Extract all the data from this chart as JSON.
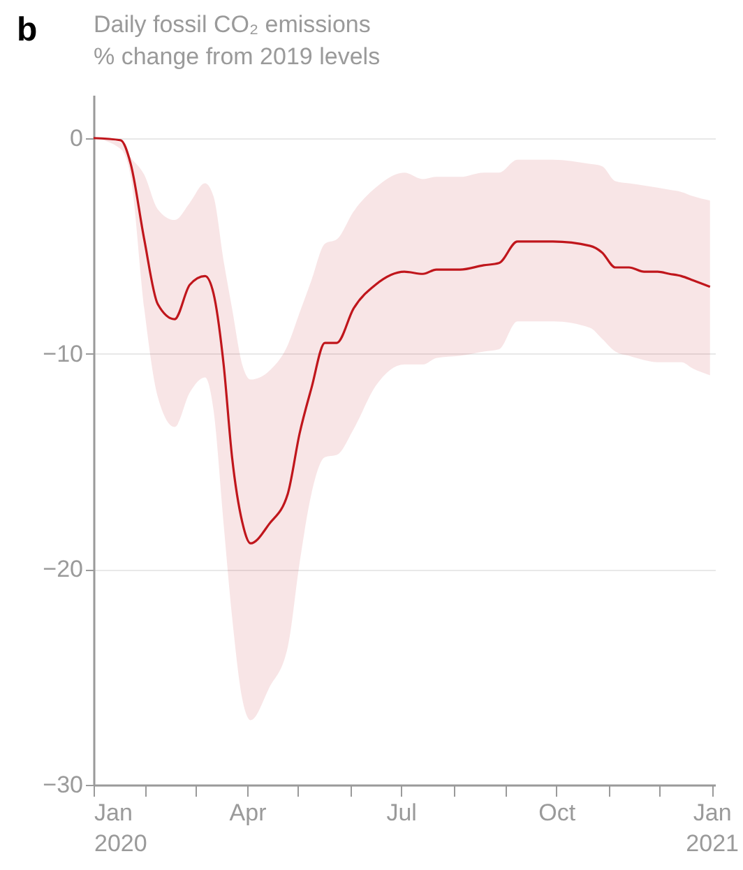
{
  "chart_data": {
    "type": "line",
    "title": "Daily fossil CO₂ emissions",
    "subtitle": "% change from 2019 levels",
    "annotations": [
      "b"
    ],
    "x": [
      "2020-01-01",
      "2020-01-17",
      "2020-01-23",
      "2020-01-31",
      "2020-02-08",
      "2020-02-18",
      "2020-02-27",
      "2020-03-07",
      "2020-03-12",
      "2020-03-18",
      "2020-03-23",
      "2020-03-29",
      "2020-04-03",
      "2020-04-14",
      "2020-04-25",
      "2020-05-02",
      "2020-05-09",
      "2020-05-17",
      "2020-05-24",
      "2020-06-03",
      "2020-06-16",
      "2020-07-03",
      "2020-07-14",
      "2020-07-22",
      "2020-08-05",
      "2020-08-19",
      "2020-08-28",
      "2020-09-08",
      "2020-09-29",
      "2020-10-21",
      "2020-10-28",
      "2020-11-05",
      "2020-11-13",
      "2020-11-22",
      "2020-11-30",
      "2020-12-07",
      "2020-12-14",
      "2020-12-21",
      "2020-12-31"
    ],
    "series": [
      {
        "color": "#c0161c",
        "line_style": "solid",
        "values": [
          0,
          -0.1,
          -1.2,
          -4.7,
          -7.7,
          -8.4,
          -6.8,
          -6.4,
          -7.2,
          -10.5,
          -14.8,
          -17.8,
          -18.8,
          -17.9,
          -16.5,
          -13.7,
          -11.6,
          -9.5,
          -9.5,
          -7.9,
          -6.8,
          -6.2,
          -6.3,
          -6.1,
          -6.1,
          -5.9,
          -5.8,
          -4.8,
          -4.8,
          -5.0,
          -5.3,
          -6.0,
          -6.0,
          -6.2,
          -6.2,
          -6.3,
          -6.4,
          -6.6,
          -6.9
        ],
        "upper": [
          0,
          -0.2,
          -0.9,
          -1.7,
          -3.3,
          -3.8,
          -3.0,
          -2.1,
          -2.7,
          -5.7,
          -7.9,
          -10.5,
          -11.2,
          -10.8,
          -9.6,
          -8.1,
          -6.6,
          -4.9,
          -4.7,
          -3.4,
          -2.3,
          -1.6,
          -1.9,
          -1.8,
          -1.8,
          -1.6,
          -1.6,
          -1.0,
          -1.0,
          -1.2,
          -1.3,
          -2.0,
          -2.1,
          -2.2,
          -2.3,
          -2.4,
          -2.5,
          -2.7,
          -2.9
        ],
        "lower": [
          0,
          -0.5,
          -1.8,
          -7.9,
          -12.0,
          -13.4,
          -11.8,
          -11.1,
          -12.6,
          -17.9,
          -22.2,
          -26.0,
          -27.0,
          -25.5,
          -23.6,
          -19.7,
          -16.5,
          -14.8,
          -14.7,
          -13.5,
          -11.5,
          -10.5,
          -10.5,
          -10.2,
          -10.1,
          -9.9,
          -9.8,
          -8.5,
          -8.5,
          -8.8,
          -9.3,
          -9.9,
          -10.1,
          -10.3,
          -10.4,
          -10.4,
          -10.4,
          -10.7,
          -11.0
        ]
      }
    ],
    "xlim": [
      "2020-01-01",
      "2021-01-03"
    ],
    "xticks": [
      {
        "value": "2020-01-01",
        "label": "Jan\n2020"
      },
      {
        "value": "2020-02-01",
        "label": null
      },
      {
        "value": "2020-03-01",
        "label": null
      },
      {
        "value": "2020-04-01",
        "label": "Apr"
      },
      {
        "value": "2020-05-01",
        "label": null
      },
      {
        "value": "2020-06-01",
        "label": null
      },
      {
        "value": "2020-07-01",
        "label": "Jul"
      },
      {
        "value": "2020-08-01",
        "label": null
      },
      {
        "value": "2020-09-01",
        "label": null
      },
      {
        "value": "2020-10-01",
        "label": "Oct"
      },
      {
        "value": "2020-11-01",
        "label": null
      },
      {
        "value": "2020-12-01",
        "label": null
      },
      {
        "value": "2021-01-01",
        "label": "Jan\n2021"
      }
    ],
    "ylim": [
      -30,
      2
    ],
    "yticks": [
      0,
      {
        "value": -10,
        "label": "−10"
      },
      {
        "value": -20,
        "label": "−20"
      },
      {
        "value": -30,
        "label": "−30"
      }
    ],
    "grid": "y"
  }
}
